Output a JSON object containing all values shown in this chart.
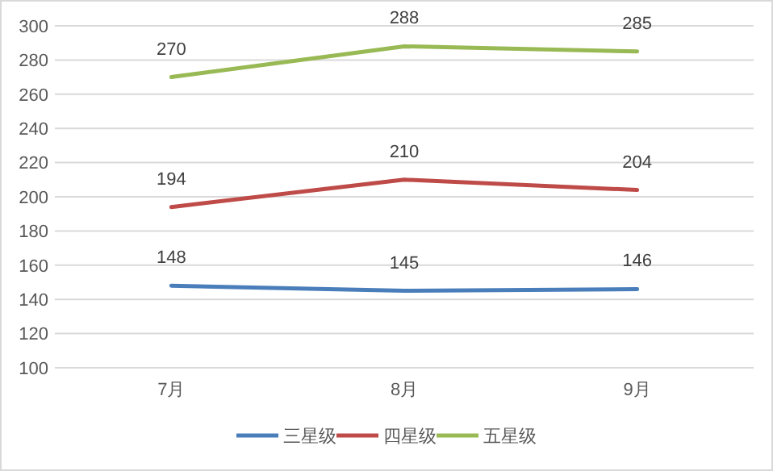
{
  "chart_data": {
    "type": "line",
    "categories": [
      "7月",
      "8月",
      "9月"
    ],
    "series": [
      {
        "name": "三星级",
        "color": "#4a7ebb",
        "values": [
          148,
          145,
          146
        ]
      },
      {
        "name": "四星级",
        "color": "#be4b48",
        "values": [
          194,
          210,
          204
        ]
      },
      {
        "name": "五星级",
        "color": "#98b954",
        "values": [
          270,
          288,
          285
        ]
      }
    ],
    "ylim": [
      100,
      300
    ],
    "yticks": [
      100,
      120,
      140,
      160,
      180,
      200,
      220,
      240,
      260,
      280,
      300
    ],
    "grid": "y",
    "legend": "bottom",
    "data_labels": true,
    "marker": "none",
    "line_style": "solid"
  }
}
